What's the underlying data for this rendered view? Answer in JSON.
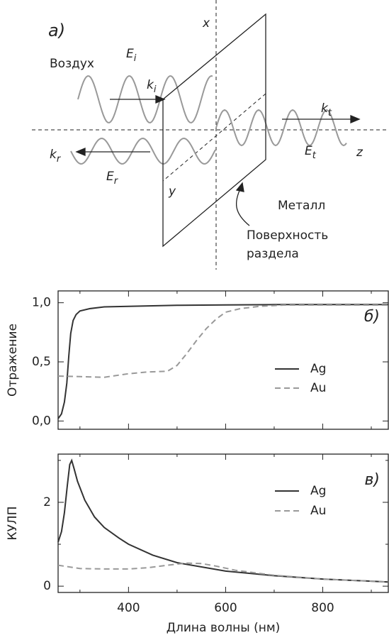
{
  "diagram": {
    "panel": "а)",
    "axis_x": "x",
    "axis_y": "y",
    "axis_z": "z",
    "air": "Воздух",
    "metal": "Металл",
    "surface": [
      "Поверхность",
      "раздела"
    ],
    "E_i": {
      "base": "E",
      "sub": "i"
    },
    "k_i": {
      "base": "k",
      "sub": "i"
    },
    "k_t": {
      "base": "k",
      "sub": "t"
    },
    "E_t": {
      "base": "E",
      "sub": "t"
    },
    "k_r": {
      "base": "k",
      "sub": "r"
    },
    "E_r": {
      "base": "E",
      "sub": "r"
    }
  },
  "chart_data": [
    {
      "type": "line",
      "annotation": "б)",
      "ylabel": "Отражение",
      "xlim": [
        255,
        935
      ],
      "ylim": [
        -0.07,
        1.1
      ],
      "xticks": [
        400,
        600,
        800
      ],
      "xminorticks": [
        300,
        500,
        700,
        900
      ],
      "yticks": [
        {
          "value": 0,
          "label": "0,0"
        },
        {
          "value": 0.5,
          "label": "0,5"
        },
        {
          "value": 1,
          "label": "1,0"
        }
      ],
      "series": [
        {
          "name": "Ag",
          "color": "#333333",
          "style": "solid",
          "x": [
            255,
            262,
            268,
            273,
            277,
            281,
            286,
            292,
            300,
            320,
            350,
            400,
            500,
            600,
            700,
            935
          ],
          "values": [
            0.02,
            0.06,
            0.16,
            0.32,
            0.55,
            0.74,
            0.85,
            0.9,
            0.93,
            0.95,
            0.965,
            0.97,
            0.978,
            0.982,
            0.984,
            0.985
          ]
        },
        {
          "name": "Au",
          "color": "#999999",
          "style": "dashed",
          "x": [
            255,
            300,
            350,
            400,
            440,
            480,
            500,
            520,
            540,
            560,
            580,
            600,
            630,
            670,
            720,
            935
          ],
          "values": [
            0.38,
            0.375,
            0.37,
            0.4,
            0.415,
            0.42,
            0.47,
            0.57,
            0.68,
            0.78,
            0.86,
            0.92,
            0.95,
            0.97,
            0.98,
            0.98
          ]
        }
      ]
    },
    {
      "type": "line",
      "annotation": "в)",
      "ylabel": "КУЛП",
      "xlabel": "Длина волны (нм)",
      "xlim": [
        255,
        935
      ],
      "ylim": [
        -0.15,
        3.15
      ],
      "xticks": [
        400,
        600,
        800
      ],
      "xminorticks": [
        300,
        500,
        700,
        900
      ],
      "yticks": [
        0,
        2
      ],
      "yminorticks": [
        1,
        3
      ],
      "series": [
        {
          "name": "Ag",
          "color": "#333333",
          "style": "solid",
          "x": [
            255,
            262,
            268,
            274,
            279,
            283,
            288,
            295,
            310,
            330,
            350,
            380,
            400,
            450,
            500,
            600,
            700,
            800,
            935
          ],
          "values": [
            1.05,
            1.3,
            1.75,
            2.4,
            2.9,
            3.0,
            2.8,
            2.5,
            2.05,
            1.65,
            1.4,
            1.15,
            1.0,
            0.74,
            0.56,
            0.36,
            0.25,
            0.17,
            0.1
          ]
        },
        {
          "name": "Au",
          "color": "#999999",
          "style": "dashed",
          "x": [
            255,
            300,
            350,
            400,
            440,
            480,
            520,
            550,
            580,
            620,
            700,
            800,
            935
          ],
          "values": [
            0.5,
            0.42,
            0.41,
            0.41,
            0.44,
            0.5,
            0.55,
            0.54,
            0.48,
            0.38,
            0.26,
            0.17,
            0.1
          ]
        }
      ]
    }
  ]
}
